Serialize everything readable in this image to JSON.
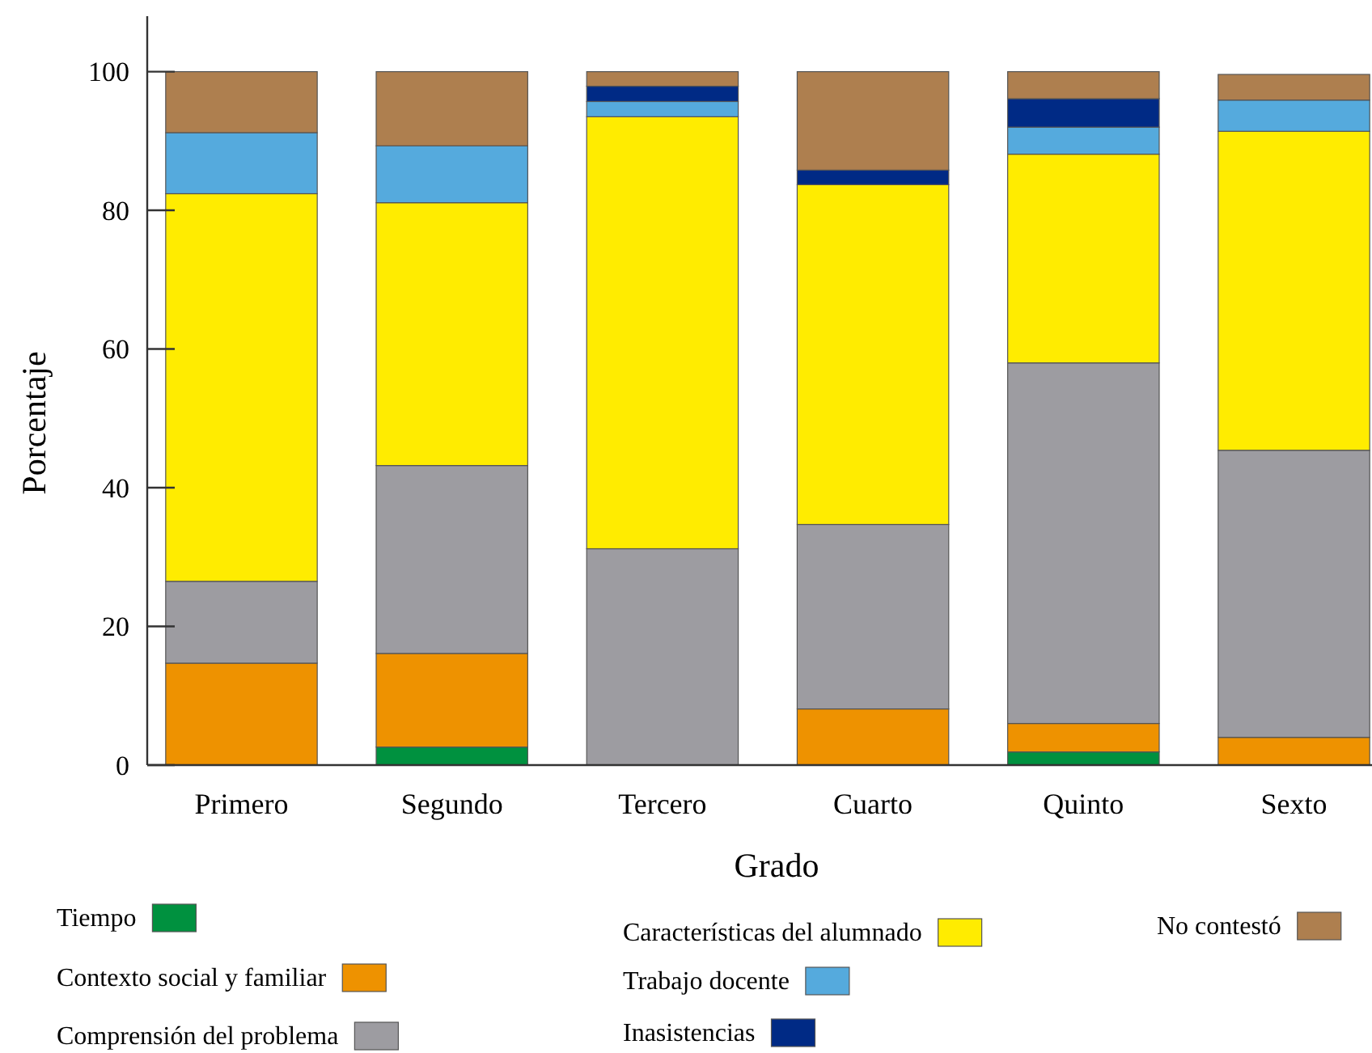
{
  "chart_data": {
    "type": "bar",
    "stacked": true,
    "xlabel": "Grado",
    "ylabel": "Porcentaje",
    "categories": [
      "Primero",
      "Segundo",
      "Tercero",
      "Cuarto",
      "Quinto",
      "Sexto"
    ],
    "series": [
      {
        "name": "Tiempo",
        "color": "#00913f",
        "values": [
          0,
          2.6,
          0,
          0,
          1.9,
          0
        ]
      },
      {
        "name": "Contexto social y familiar",
        "color": "#ee9200",
        "values": [
          14.7,
          13.5,
          0,
          8.1,
          4.1,
          4.0
        ]
      },
      {
        "name": "Comprensión del problema",
        "color": "#9d9ca1",
        "values": [
          11.8,
          27.1,
          31.2,
          26.6,
          52.0,
          41.4
        ]
      },
      {
        "name": "Características del alumnado",
        "color": "#ffec00",
        "values": [
          55.9,
          37.9,
          62.3,
          49.0,
          30.1,
          46.0
        ]
      },
      {
        "name": "Trabajo docente",
        "color": "#55aadd",
        "values": [
          8.8,
          8.2,
          2.2,
          0,
          3.9,
          4.5
        ]
      },
      {
        "name": "Inasistencias",
        "color": "#002a85",
        "values": [
          0,
          0,
          2.2,
          2.1,
          4.1,
          0
        ]
      },
      {
        "name": "No contestó",
        "color": "#ae7f4f",
        "values": [
          8.8,
          10.7,
          2.1,
          14.2,
          3.9,
          3.7
        ]
      }
    ],
    "ylim": [
      0,
      108
    ],
    "yticks": [
      0,
      20,
      40,
      60,
      80,
      100
    ],
    "grid": false,
    "legend": "bottom"
  }
}
